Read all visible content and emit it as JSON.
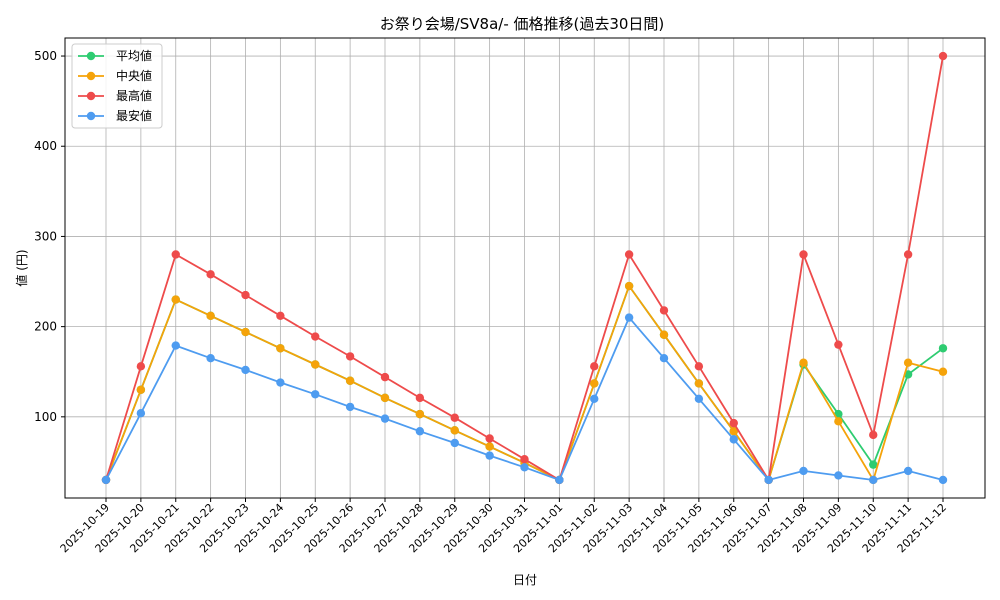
{
  "chart_data": {
    "type": "line",
    "title": "お祭り会場/SV8a/- 価格推移(過去30日間)",
    "xlabel": "日付",
    "ylabel": "値 (円)",
    "x": [
      "2025-10-19",
      "2025-10-20",
      "2025-10-21",
      "2025-10-22",
      "2025-10-23",
      "2025-10-24",
      "2025-10-25",
      "2025-10-26",
      "2025-10-27",
      "2025-10-28",
      "2025-10-29",
      "2025-10-30",
      "2025-10-31",
      "2025-11-01",
      "2025-11-02",
      "2025-11-03",
      "2025-11-04",
      "2025-11-05",
      "2025-11-06",
      "2025-11-07",
      "2025-11-08",
      "2025-11-09",
      "2025-11-10",
      "2025-11-11",
      "2025-11-12"
    ],
    "y_ticks": [
      100,
      200,
      300,
      400,
      500
    ],
    "ylim": [
      10,
      520
    ],
    "grid": true,
    "legend_position": "top-left",
    "series": [
      {
        "name": "平均値",
        "color": "#2ecc71",
        "values": [
          30,
          130,
          230,
          212,
          194,
          176,
          158,
          140,
          121,
          103,
          85,
          67,
          49,
          30,
          137,
          245,
          191,
          137,
          84,
          30,
          158,
          103,
          47,
          147,
          176
        ]
      },
      {
        "name": "中央値",
        "color": "#f5a30a",
        "values": [
          30,
          130,
          230,
          212,
          194,
          176,
          158,
          140,
          121,
          103,
          85,
          67,
          49,
          30,
          137,
          245,
          191,
          137,
          84,
          30,
          160,
          95,
          30,
          160,
          150
        ]
      },
      {
        "name": "最高値",
        "color": "#ee4b4b",
        "values": [
          30,
          156,
          280,
          258,
          235,
          212,
          189,
          167,
          144,
          121,
          99,
          76,
          53,
          30,
          156,
          280,
          218,
          156,
          93,
          30,
          280,
          180,
          80,
          280,
          500
        ]
      },
      {
        "name": "最安値",
        "color": "#4e9cf0",
        "values": [
          30,
          104,
          179,
          165,
          152,
          138,
          125,
          111,
          98,
          84,
          71,
          57,
          44,
          30,
          120,
          210,
          165,
          120,
          75,
          30,
          40,
          35,
          30,
          40,
          30
        ]
      }
    ]
  }
}
